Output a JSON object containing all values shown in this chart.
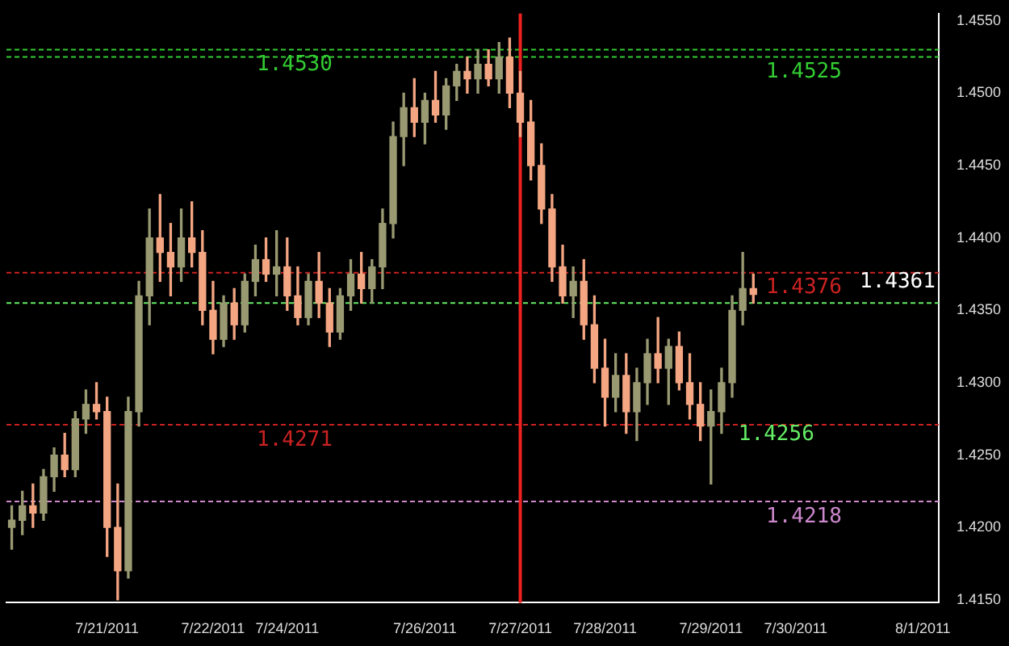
{
  "chart_data": {
    "type": "candlestick",
    "categories": [
      null,
      null,
      null,
      null,
      null,
      null,
      null,
      null,
      null,
      "7/21/2011",
      null,
      null,
      null,
      null,
      null,
      null,
      null,
      null,
      null,
      "7/22/2011",
      null,
      null,
      null,
      null,
      null,
      null,
      "7/24/2011",
      null,
      null,
      null,
      null,
      null,
      null,
      null,
      null,
      null,
      null,
      null,
      null,
      "7/26/2011",
      null,
      null,
      null,
      null,
      null,
      null,
      null,
      null,
      "7/27/2011",
      null,
      null,
      null,
      null,
      null,
      null,
      null,
      "7/28/2011",
      null,
      null,
      null,
      null,
      null,
      null,
      null,
      null,
      null,
      "7/29/2011",
      null,
      null,
      null,
      null,
      null,
      null,
      null,
      "7/30/2011",
      null,
      null,
      null,
      null,
      null,
      null,
      null,
      null,
      null,
      null,
      null,
      "8/1/2011",
      null
    ],
    "ohlc": [
      [
        1.42,
        1.4215,
        1.4185,
        1.4205
      ],
      [
        1.4205,
        1.4225,
        1.4195,
        1.4215
      ],
      [
        1.4215,
        1.423,
        1.42,
        1.421
      ],
      [
        1.421,
        1.424,
        1.4205,
        1.4235
      ],
      [
        1.4235,
        1.4255,
        1.4225,
        1.425
      ],
      [
        1.425,
        1.4265,
        1.4235,
        1.424
      ],
      [
        1.424,
        1.428,
        1.4235,
        1.4275
      ],
      [
        1.4275,
        1.4295,
        1.4265,
        1.4285
      ],
      [
        1.4285,
        1.43,
        1.4275,
        1.428
      ],
      [
        1.428,
        1.429,
        1.418,
        1.42
      ],
      [
        1.42,
        1.423,
        1.415,
        1.417
      ],
      [
        1.417,
        1.429,
        1.4165,
        1.428
      ],
      [
        1.428,
        1.437,
        1.427,
        1.436
      ],
      [
        1.436,
        1.442,
        1.434,
        1.44
      ],
      [
        1.44,
        1.443,
        1.437,
        1.439
      ],
      [
        1.439,
        1.441,
        1.436,
        1.438
      ],
      [
        1.438,
        1.442,
        1.437,
        1.44
      ],
      [
        1.44,
        1.4425,
        1.438,
        1.439
      ],
      [
        1.439,
        1.4405,
        1.434,
        1.435
      ],
      [
        1.435,
        1.437,
        1.432,
        1.433
      ],
      [
        1.433,
        1.436,
        1.4325,
        1.4355
      ],
      [
        1.4355,
        1.4365,
        1.433,
        1.434
      ],
      [
        1.434,
        1.4375,
        1.4335,
        1.437
      ],
      [
        1.437,
        1.4395,
        1.436,
        1.4385
      ],
      [
        1.4385,
        1.44,
        1.437,
        1.4375
      ],
      [
        1.4375,
        1.4405,
        1.436,
        1.438
      ],
      [
        1.438,
        1.44,
        1.435,
        1.436
      ],
      [
        1.436,
        1.438,
        1.434,
        1.4345
      ],
      [
        1.4345,
        1.4375,
        1.434,
        1.437
      ],
      [
        1.437,
        1.439,
        1.4345,
        1.4355
      ],
      [
        1.4355,
        1.4365,
        1.4325,
        1.4335
      ],
      [
        1.4335,
        1.4365,
        1.433,
        1.436
      ],
      [
        1.436,
        1.4385,
        1.435,
        1.4375
      ],
      [
        1.4375,
        1.439,
        1.4355,
        1.4365
      ],
      [
        1.4365,
        1.4385,
        1.4355,
        1.438
      ],
      [
        1.438,
        1.442,
        1.4365,
        1.441
      ],
      [
        1.441,
        1.448,
        1.44,
        1.447
      ],
      [
        1.447,
        1.45,
        1.445,
        1.449
      ],
      [
        1.449,
        1.451,
        1.447,
        1.448
      ],
      [
        1.448,
        1.45,
        1.4465,
        1.4495
      ],
      [
        1.4495,
        1.4515,
        1.448,
        1.4485
      ],
      [
        1.4485,
        1.451,
        1.4475,
        1.4505
      ],
      [
        1.4505,
        1.452,
        1.4495,
        1.4515
      ],
      [
        1.4515,
        1.4525,
        1.45,
        1.451
      ],
      [
        1.451,
        1.453,
        1.45,
        1.452
      ],
      [
        1.452,
        1.453,
        1.4505,
        1.451
      ],
      [
        1.451,
        1.4535,
        1.45,
        1.4525
      ],
      [
        1.4525,
        1.4538,
        1.449,
        1.45
      ],
      [
        1.45,
        1.4515,
        1.447,
        1.448
      ],
      [
        1.448,
        1.4495,
        1.444,
        1.445
      ],
      [
        1.445,
        1.4465,
        1.441,
        1.442
      ],
      [
        1.442,
        1.443,
        1.437,
        1.438
      ],
      [
        1.438,
        1.4395,
        1.4355,
        1.436
      ],
      [
        1.436,
        1.438,
        1.4345,
        1.437
      ],
      [
        1.437,
        1.4385,
        1.433,
        1.434
      ],
      [
        1.434,
        1.436,
        1.43,
        1.431
      ],
      [
        1.431,
        1.433,
        1.427,
        1.429
      ],
      [
        1.429,
        1.432,
        1.428,
        1.4305
      ],
      [
        1.4305,
        1.432,
        1.4265,
        1.428
      ],
      [
        1.428,
        1.431,
        1.426,
        1.43
      ],
      [
        1.43,
        1.433,
        1.4285,
        1.432
      ],
      [
        1.432,
        1.4345,
        1.43,
        1.431
      ],
      [
        1.431,
        1.433,
        1.4285,
        1.4325
      ],
      [
        1.4325,
        1.4335,
        1.4295,
        1.43
      ],
      [
        1.43,
        1.432,
        1.4275,
        1.4285
      ],
      [
        1.4285,
        1.43,
        1.426,
        1.427
      ],
      [
        1.427,
        1.4295,
        1.423,
        1.428
      ],
      [
        1.428,
        1.431,
        1.4265,
        1.43
      ],
      [
        1.43,
        1.436,
        1.429,
        1.435
      ],
      [
        1.435,
        1.439,
        1.434,
        1.4365
      ],
      [
        1.4365,
        1.4375,
        1.4355,
        1.4361
      ],
      null,
      null,
      null,
      null,
      null,
      null,
      null,
      null,
      null,
      null,
      null,
      null,
      null,
      null,
      null,
      null,
      null
    ],
    "colors": [
      "#9a9a72",
      "#9a9a72",
      "#f4a582",
      "#9a9a72",
      "#9a9a72",
      "#f4a582",
      "#9a9a72",
      "#9a9a72",
      "#f4a582",
      "#f4a582",
      "#f4a582",
      "#9a9a72",
      "#9a9a72",
      "#9a9a72",
      "#f4a582",
      "#f4a582",
      "#9a9a72",
      "#f4a582",
      "#f4a582",
      "#f4a582",
      "#9a9a72",
      "#f4a582",
      "#9a9a72",
      "#9a9a72",
      "#f4a582",
      "#9a9a72",
      "#f4a582",
      "#f4a582",
      "#9a9a72",
      "#f4a582",
      "#f4a582",
      "#9a9a72",
      "#9a9a72",
      "#f4a582",
      "#9a9a72",
      "#9a9a72",
      "#9a9a72",
      "#9a9a72",
      "#f4a582",
      "#9a9a72",
      "#f4a582",
      "#9a9a72",
      "#9a9a72",
      "#f4a582",
      "#9a9a72",
      "#f4a582",
      "#9a9a72",
      "#f4a582",
      "#f4a582",
      "#f4a582",
      "#f4a582",
      "#f4a582",
      "#f4a582",
      "#9a9a72",
      "#f4a582",
      "#f4a582",
      "#f4a582",
      "#9a9a72",
      "#f4a582",
      "#9a9a72",
      "#9a9a72",
      "#f4a582",
      "#9a9a72",
      "#f4a582",
      "#f4a582",
      "#f4a582",
      "#9a9a72",
      "#9a9a72",
      "#9a9a72",
      "#9a9a72",
      "#f4a582",
      null,
      null,
      null,
      null,
      null,
      null,
      null,
      null,
      null,
      null,
      null,
      null,
      null,
      null,
      null,
      null,
      null
    ],
    "ylim": [
      1.4148,
      1.4555
    ],
    "yticks": [
      {
        "value": 1.415,
        "label": "1.4150"
      },
      {
        "value": 1.42,
        "label": "1.4200"
      },
      {
        "value": 1.425,
        "label": "1.4250"
      },
      {
        "value": 1.43,
        "label": "1.4300"
      },
      {
        "value": 1.435,
        "label": "1.4350"
      },
      {
        "value": 1.44,
        "label": "1.4400"
      },
      {
        "value": 1.445,
        "label": "1.4450"
      },
      {
        "value": 1.45,
        "label": "1.4500"
      },
      {
        "value": 1.455,
        "label": "1.4550"
      }
    ],
    "grid": false,
    "legend": false,
    "ref_lines": [
      {
        "axis": "y",
        "value": 1.453,
        "label": "1.4530",
        "color": "#33cc33",
        "line_style": "dashed"
      },
      {
        "axis": "y",
        "value": 1.4525,
        "label": "1.4525",
        "color": "#33cc33",
        "line_style": "dashed"
      },
      {
        "axis": "y",
        "value": 1.4271,
        "label": "1.4271",
        "color": "#cc2222",
        "line_style": "dashed"
      },
      {
        "axis": "y",
        "value": 1.4376,
        "label": "1.4376",
        "color": "#cc2222",
        "line_style": "dashed"
      },
      {
        "axis": "y",
        "value": 1.4355,
        "color": "#66ee66",
        "line_style": "dashed"
      },
      {
        "axis": "y",
        "value": 1.4218,
        "label": "1.4218",
        "color": "#cc88cc",
        "line_style": "dashed"
      },
      {
        "axis": "x",
        "value": "7/27/2011",
        "color": "#ee2222",
        "line_style": "solid"
      }
    ],
    "annotations": [
      "1.4256",
      "1.4361"
    ]
  }
}
